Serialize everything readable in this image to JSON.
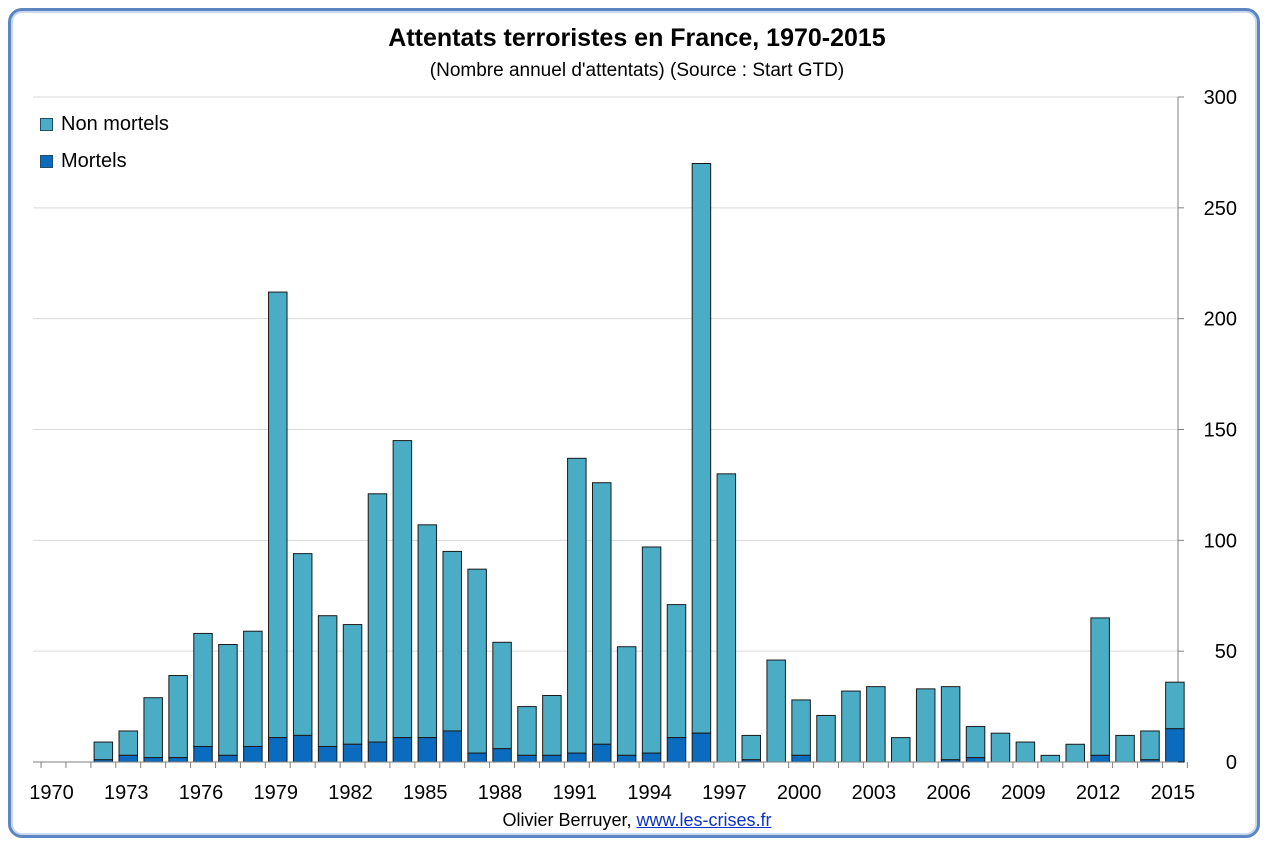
{
  "chart_data": {
    "type": "bar",
    "stacked": true,
    "title": "Attentats terroristes en France,  1970-2015",
    "subtitle": "(Nombre annuel d'attentats) (Source : Start GTD)",
    "x": [
      1970,
      1971,
      1972,
      1973,
      1974,
      1975,
      1976,
      1977,
      1978,
      1979,
      1980,
      1981,
      1982,
      1983,
      1984,
      1985,
      1986,
      1987,
      1988,
      1989,
      1990,
      1991,
      1992,
      1993,
      1994,
      1995,
      1996,
      1997,
      1998,
      1999,
      2000,
      2001,
      2002,
      2003,
      2004,
      2005,
      2006,
      2007,
      2008,
      2009,
      2010,
      2011,
      2012,
      2013,
      2014,
      2015
    ],
    "x_tick_labels": [
      "1970",
      "1973",
      "1976",
      "1979",
      "1982",
      "1985",
      "1988",
      "1991",
      "1994",
      "1997",
      "2000",
      "2003",
      "2006",
      "2009",
      "2012",
      "2015"
    ],
    "series": [
      {
        "name": "Mortels",
        "color": "#0a6bbf",
        "values": [
          0,
          0,
          1,
          3,
          2,
          2,
          7,
          3,
          7,
          11,
          12,
          7,
          8,
          9,
          11,
          11,
          14,
          4,
          6,
          3,
          3,
          4,
          8,
          3,
          4,
          11,
          13,
          0,
          1,
          0,
          3,
          0,
          0,
          0,
          0,
          0,
          1,
          2,
          0,
          0,
          0,
          0,
          3,
          0,
          1,
          15
        ]
      },
      {
        "name": "Non mortels",
        "color": "#4bacc6",
        "values": [
          0,
          0,
          8,
          11,
          27,
          37,
          51,
          50,
          52,
          201,
          82,
          59,
          54,
          112,
          134,
          96,
          81,
          83,
          48,
          22,
          27,
          133,
          118,
          49,
          93,
          60,
          257,
          130,
          11,
          46,
          25,
          21,
          32,
          34,
          11,
          33,
          33,
          14,
          13,
          9,
          3,
          8,
          62,
          12,
          13,
          21
        ]
      }
    ],
    "legend": [
      "Non mortels",
      "Mortels"
    ],
    "legend_position": "top-left",
    "y_axis_side": "right",
    "ylim": [
      0,
      300
    ],
    "y_ticks": [
      "0",
      "50",
      "100",
      "150",
      "200",
      "250",
      "300"
    ],
    "grid": true
  },
  "credit": {
    "author": "Olivier Berruyer,",
    "link": "www.les-crises.fr"
  }
}
